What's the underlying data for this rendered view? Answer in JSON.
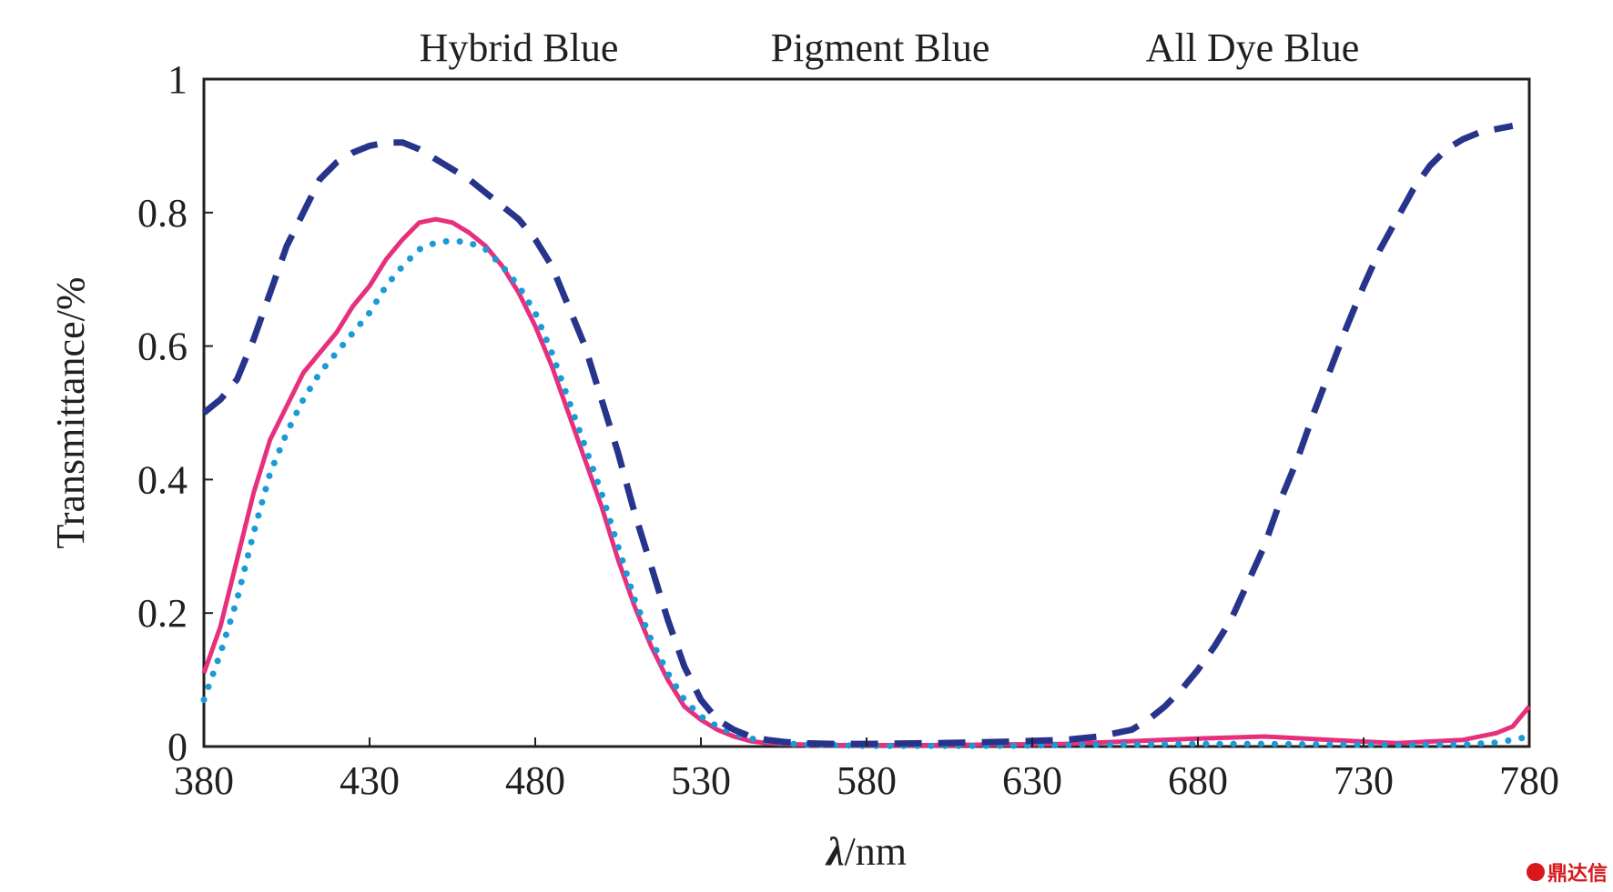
{
  "chart_data": {
    "type": "line",
    "title": "",
    "xlabel_var": "λ",
    "xlabel_unit": "/nm",
    "ylabel": "Transmittance/%",
    "xlim": [
      380,
      780
    ],
    "ylim": [
      0,
      1
    ],
    "xticks": [
      380,
      430,
      480,
      530,
      580,
      630,
      680,
      730,
      780
    ],
    "yticks": [
      0,
      0.2,
      0.4,
      0.6,
      0.8,
      1
    ],
    "ytick_labels": [
      "0",
      "0.2",
      "0.4",
      "0.6",
      "0.8",
      "1"
    ],
    "grid": false,
    "legend_position": "top",
    "series": [
      {
        "name": "Hybrid Blue",
        "color": "#e6307e",
        "style": "solid",
        "x": [
          380,
          385,
          390,
          395,
          400,
          405,
          410,
          415,
          420,
          425,
          430,
          435,
          440,
          445,
          450,
          455,
          460,
          465,
          470,
          475,
          480,
          485,
          490,
          495,
          500,
          505,
          510,
          515,
          520,
          525,
          530,
          535,
          540,
          545,
          550,
          555,
          560,
          570,
          580,
          600,
          620,
          640,
          660,
          680,
          700,
          720,
          740,
          760,
          770,
          775,
          780
        ],
        "y": [
          0.11,
          0.18,
          0.28,
          0.38,
          0.46,
          0.51,
          0.56,
          0.59,
          0.62,
          0.66,
          0.69,
          0.73,
          0.76,
          0.785,
          0.79,
          0.785,
          0.77,
          0.75,
          0.72,
          0.68,
          0.63,
          0.57,
          0.5,
          0.43,
          0.36,
          0.28,
          0.21,
          0.15,
          0.1,
          0.06,
          0.04,
          0.025,
          0.015,
          0.008,
          0.005,
          0.004,
          0.003,
          0.002,
          0.002,
          0.002,
          0.003,
          0.004,
          0.008,
          0.012,
          0.015,
          0.01,
          0.005,
          0.01,
          0.02,
          0.03,
          0.06
        ]
      },
      {
        "name": "Pigment Blue",
        "color": "#1b9ad6",
        "style": "dotted",
        "x": [
          380,
          385,
          390,
          395,
          400,
          405,
          410,
          415,
          420,
          425,
          430,
          435,
          440,
          445,
          450,
          455,
          460,
          465,
          470,
          475,
          480,
          485,
          490,
          495,
          500,
          505,
          510,
          515,
          520,
          525,
          530,
          535,
          540,
          545,
          550,
          555,
          560,
          570,
          580,
          600,
          620,
          640,
          660,
          680,
          700,
          720,
          740,
          760,
          770,
          775,
          780
        ],
        "y": [
          0.07,
          0.14,
          0.22,
          0.32,
          0.41,
          0.47,
          0.52,
          0.56,
          0.59,
          0.62,
          0.65,
          0.69,
          0.72,
          0.745,
          0.755,
          0.758,
          0.755,
          0.745,
          0.72,
          0.69,
          0.65,
          0.59,
          0.52,
          0.45,
          0.38,
          0.3,
          0.22,
          0.16,
          0.11,
          0.07,
          0.045,
          0.03,
          0.02,
          0.012,
          0.008,
          0.005,
          0.003,
          0.002,
          0.001,
          0.001,
          0.001,
          0.002,
          0.003,
          0.004,
          0.004,
          0.003,
          0.002,
          0.003,
          0.006,
          0.01,
          0.015
        ]
      },
      {
        "name": "All Dye Blue",
        "color": "#27348b",
        "style": "dashed",
        "x": [
          380,
          385,
          390,
          395,
          400,
          405,
          410,
          415,
          420,
          425,
          430,
          435,
          440,
          445,
          450,
          455,
          460,
          465,
          470,
          475,
          480,
          485,
          490,
          495,
          500,
          505,
          510,
          515,
          520,
          525,
          530,
          535,
          540,
          545,
          550,
          555,
          560,
          570,
          580,
          600,
          620,
          640,
          650,
          660,
          665,
          670,
          675,
          680,
          685,
          690,
          695,
          700,
          705,
          710,
          715,
          720,
          725,
          730,
          735,
          740,
          745,
          750,
          755,
          760,
          765,
          770,
          775
        ],
        "y": [
          0.5,
          0.52,
          0.55,
          0.61,
          0.68,
          0.75,
          0.8,
          0.85,
          0.875,
          0.89,
          0.9,
          0.905,
          0.905,
          0.895,
          0.88,
          0.865,
          0.85,
          0.83,
          0.81,
          0.79,
          0.76,
          0.72,
          0.66,
          0.6,
          0.52,
          0.44,
          0.35,
          0.27,
          0.19,
          0.12,
          0.07,
          0.04,
          0.025,
          0.015,
          0.01,
          0.007,
          0.005,
          0.004,
          0.004,
          0.005,
          0.007,
          0.01,
          0.015,
          0.025,
          0.04,
          0.06,
          0.085,
          0.115,
          0.15,
          0.19,
          0.245,
          0.3,
          0.37,
          0.43,
          0.5,
          0.565,
          0.63,
          0.69,
          0.745,
          0.79,
          0.835,
          0.87,
          0.895,
          0.91,
          0.92,
          0.925,
          0.93
        ]
      }
    ]
  },
  "watermark": {
    "text": "鼎达信"
  }
}
